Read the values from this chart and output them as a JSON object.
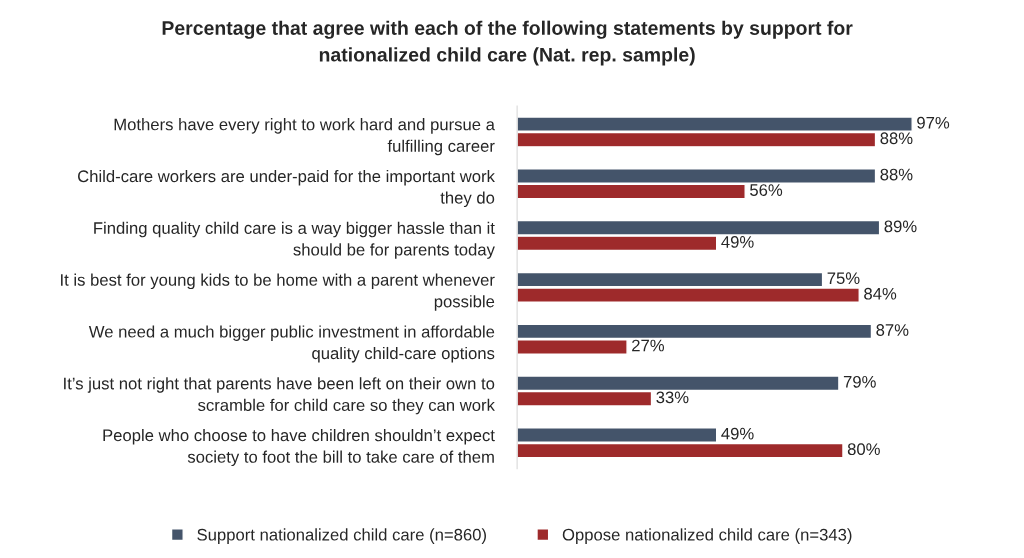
{
  "chart_data": {
    "type": "bar",
    "orientation": "horizontal",
    "title": "Percentage that agree with each of the following statements by support for\nnationalized child care (Nat. rep. sample)",
    "categories": [
      "Mothers have every right to work hard and pursue a\nfulfilling career",
      "Child-care workers are under-paid for the important work\nthey do",
      "Finding quality child care is a way bigger hassle than it\nshould be for parents today",
      "It is best for young kids to be home with a parent whenever\npossible",
      "We need a much bigger public investment in affordable\nquality child-care options",
      "It’s just not right that parents have been left on their own to\nscramble for child care so they can work",
      "People who choose to have children shouldn’t expect\nsociety to foot the bill to take care of them"
    ],
    "series": [
      {
        "name": "Support nationalized child care (n=860)",
        "color": "#44546a",
        "values": [
          97,
          88,
          89,
          75,
          87,
          79,
          49
        ],
        "value_labels": [
          "97%",
          "88%",
          "89%",
          "75%",
          "87%",
          "79%",
          "49%"
        ]
      },
      {
        "name": "Oppose nationalized child care (n=343)",
        "color": "#9e2a2b",
        "values": [
          88,
          56,
          49,
          84,
          27,
          33,
          80
        ],
        "value_labels": [
          "88%",
          "56%",
          "49%",
          "84%",
          "27%",
          "33%",
          "80%"
        ]
      }
    ],
    "legend": "bottom",
    "grid": false
  }
}
